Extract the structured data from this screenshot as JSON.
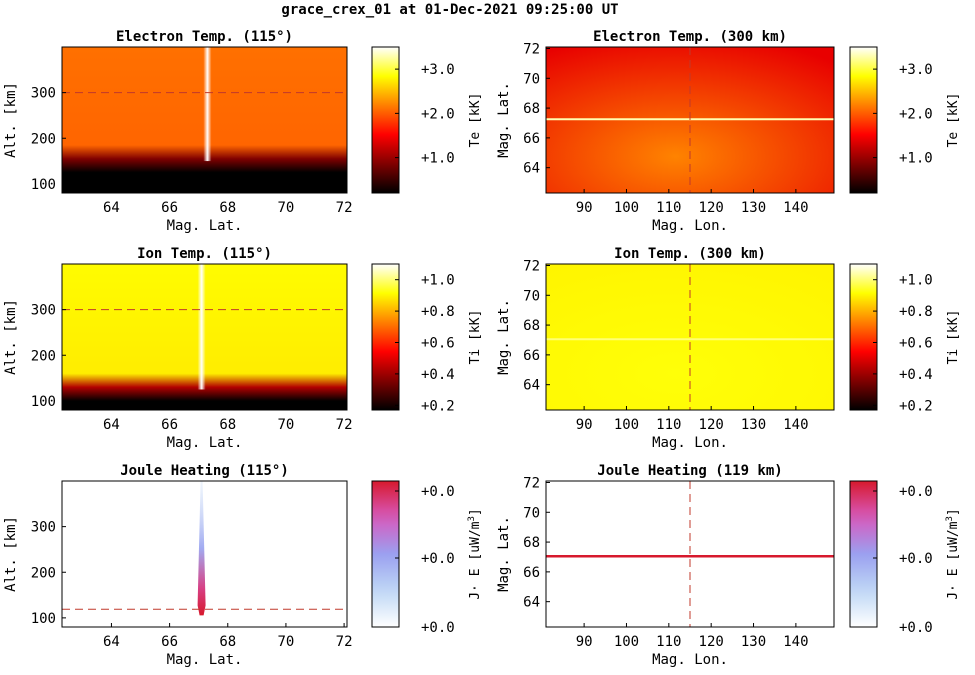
{
  "page": {
    "title": "grace_crex_01 at 01-Dec-2021 09:25:00 UT"
  },
  "chart_data": [
    {
      "type": "heatmap",
      "title": "Electron Temp. (115°)",
      "xlabel": "Mag. Lat.",
      "ylabel": "Alt. [km]",
      "xlim": [
        62.3,
        72.1
      ],
      "ylim": [
        80,
        400
      ],
      "xticks": [
        "64",
        "66",
        "68",
        "70",
        "72"
      ],
      "yticks": [
        "100",
        "200",
        "300"
      ],
      "reference_line": {
        "axis": "y",
        "value": 300
      },
      "colorbar": {
        "label": "Te [kK]",
        "ticks": [
          "+1.0",
          "+2.0",
          "+3.0"
        ],
        "range": [
          0.2,
          3.5
        ],
        "cmap": "hot"
      },
      "feature": {
        "kind": "vertical-band",
        "at": 67.3,
        "from": 150,
        "value": 3.5
      },
      "profile": {
        "transition": 165,
        "bottom_value": 0.1,
        "top_value": 2.1
      }
    },
    {
      "type": "heatmap",
      "title": "Electron Temp. (300 km)",
      "xlabel": "Mag. Lon.",
      "ylabel": "Mag. Lat.",
      "xlim": [
        81,
        149
      ],
      "ylim": [
        62.3,
        72.1
      ],
      "xticks": [
        "90",
        "100",
        "110",
        "120",
        "130",
        "140"
      ],
      "yticks": [
        "64",
        "66",
        "68",
        "70",
        "72"
      ],
      "reference_line": {
        "axis": "x",
        "value": 115
      },
      "colorbar": {
        "label": "Te [kK]",
        "ticks": [
          "+1.0",
          "+2.0",
          "+3.0"
        ],
        "range": [
          0.2,
          3.5
        ],
        "cmap": "hot"
      },
      "feature": {
        "kind": "horizontal-band",
        "at": 67.25,
        "value": 3.3
      },
      "field": {
        "center_value": 2.2,
        "edge_value": 1.4
      }
    },
    {
      "type": "heatmap",
      "title": "Ion Temp. (115°)",
      "xlabel": "Mag. Lat.",
      "ylabel": "Alt. [km]",
      "xlim": [
        62.3,
        72.1
      ],
      "ylim": [
        80,
        400
      ],
      "xticks": [
        "64",
        "66",
        "68",
        "70",
        "72"
      ],
      "yticks": [
        "100",
        "200",
        "300"
      ],
      "reference_line": {
        "axis": "y",
        "value": 300
      },
      "colorbar": {
        "label": "Ti [kK]",
        "ticks": [
          "+0.2",
          "+0.4",
          "+0.6",
          "+0.8",
          "+1.0"
        ],
        "range": [
          0.17,
          1.1
        ],
        "cmap": "hot"
      },
      "feature": {
        "kind": "vertical-band",
        "at": 67.1,
        "from": 125,
        "value": 1.1
      },
      "profile": {
        "transition": 140,
        "bottom_value": 0.15,
        "top_value": 0.91
      }
    },
    {
      "type": "heatmap",
      "title": "Ion Temp. (300 km)",
      "xlabel": "Mag. Lon.",
      "ylabel": "Mag. Lat.",
      "xlim": [
        81,
        149
      ],
      "ylim": [
        62.3,
        72.1
      ],
      "xticks": [
        "90",
        "100",
        "110",
        "120",
        "130",
        "140"
      ],
      "yticks": [
        "64",
        "66",
        "68",
        "70",
        "72"
      ],
      "reference_line": {
        "axis": "x",
        "value": 115
      },
      "colorbar": {
        "label": "Ti [kK]",
        "ticks": [
          "+0.2",
          "+0.4",
          "+0.6",
          "+0.8",
          "+1.0"
        ],
        "range": [
          0.17,
          1.1
        ],
        "cmap": "hot"
      },
      "feature": {
        "kind": "horizontal-band",
        "at": 67.05,
        "value": 1.0
      },
      "field": {
        "center_value": 0.92,
        "edge_value": 0.9
      }
    },
    {
      "type": "heatmap",
      "title": "Joule Heating (115°)",
      "xlabel": "Mag. Lat.",
      "ylabel": "Alt. [km]",
      "xlim": [
        62.3,
        72.1
      ],
      "ylim": [
        80,
        400
      ],
      "xticks": [
        "64",
        "66",
        "68",
        "70",
        "72"
      ],
      "yticks": [
        "100",
        "200",
        "300"
      ],
      "reference_line": {
        "axis": "y",
        "value": 119
      },
      "colorbar": {
        "label": "J· E [uW/m",
        "label_sup": "3",
        "label_end": "]",
        "ticks": [
          "+0.0",
          "+0.0",
          "+0.0"
        ],
        "cmap": "diverging"
      },
      "feature": {
        "kind": "spike",
        "at": 67.1,
        "peak_alt": 110,
        "top_alt": 400
      }
    },
    {
      "type": "heatmap",
      "title": "Joule Heating (119 km)",
      "xlabel": "Mag. Lon.",
      "ylabel": "Mag. Lat.",
      "xlim": [
        81,
        149
      ],
      "ylim": [
        62.3,
        72.1
      ],
      "xticks": [
        "90",
        "100",
        "110",
        "120",
        "130",
        "140"
      ],
      "yticks": [
        "64",
        "66",
        "68",
        "70",
        "72"
      ],
      "reference_line": {
        "axis": "x",
        "value": 115
      },
      "colorbar": {
        "label": "J· E [uW/m",
        "label_sup": "3",
        "label_end": "]",
        "ticks": [
          "+0.0",
          "+0.0",
          "+0.0"
        ],
        "cmap": "diverging"
      },
      "feature": {
        "kind": "horizontal-line",
        "at": 67.05
      }
    }
  ]
}
